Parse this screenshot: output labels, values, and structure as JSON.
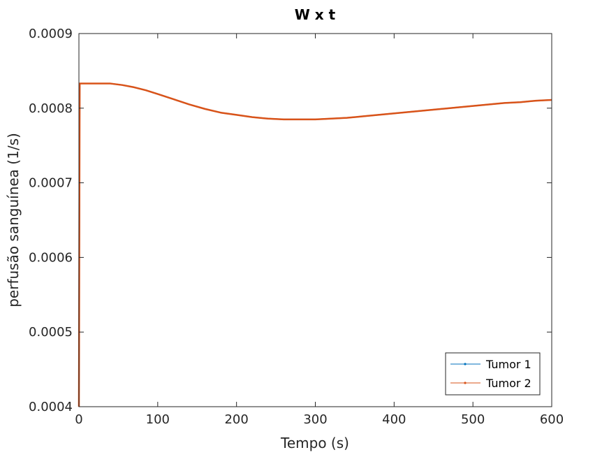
{
  "chart_data": {
    "type": "line",
    "title": "W x t",
    "xlabel": "Tempo (s)",
    "ylabel": "perfusão sanguínea (1/s)",
    "xlim": [
      0,
      600
    ],
    "ylim": [
      0.0004,
      0.0009
    ],
    "x_ticks": [
      0,
      100,
      200,
      300,
      400,
      500,
      600
    ],
    "x_tick_labels": [
      "0",
      "100",
      "200",
      "300",
      "400",
      "500",
      "600"
    ],
    "y_ticks": [
      0.0004,
      0.0005,
      0.0006,
      0.0007,
      0.0008,
      0.0009
    ],
    "y_tick_labels": [
      "0.0004",
      "0.0005",
      "0.0006",
      "0.0007",
      "0.0008",
      "0.0009"
    ],
    "grid": false,
    "legend_position": "bottom-right",
    "series": [
      {
        "name": "Tumor 1",
        "color": "#0072BD",
        "x": [
          0,
          1,
          10,
          25,
          40,
          55,
          70,
          85,
          100,
          120,
          140,
          160,
          180,
          200,
          220,
          240,
          260,
          280,
          300,
          320,
          340,
          360,
          380,
          400,
          420,
          440,
          460,
          480,
          500,
          520,
          540,
          560,
          580,
          600
        ],
        "y": [
          0.0004,
          0.000833,
          0.000833,
          0.000833,
          0.000833,
          0.000831,
          0.000828,
          0.000824,
          0.000819,
          0.000812,
          0.000805,
          0.000799,
          0.000794,
          0.000791,
          0.000788,
          0.000786,
          0.000785,
          0.000785,
          0.000785,
          0.000786,
          0.000787,
          0.000789,
          0.000791,
          0.000793,
          0.000795,
          0.000797,
          0.000799,
          0.000801,
          0.000803,
          0.000805,
          0.000807,
          0.000808,
          0.00081,
          0.000811
        ]
      },
      {
        "name": "Tumor 2",
        "color": "#D95319",
        "x": [
          0,
          1,
          10,
          25,
          40,
          55,
          70,
          85,
          100,
          120,
          140,
          160,
          180,
          200,
          220,
          240,
          260,
          280,
          300,
          320,
          340,
          360,
          380,
          400,
          420,
          440,
          460,
          480,
          500,
          520,
          540,
          560,
          580,
          600
        ],
        "y": [
          0.0004,
          0.000833,
          0.000833,
          0.000833,
          0.000833,
          0.000831,
          0.000828,
          0.000824,
          0.000819,
          0.000812,
          0.000805,
          0.000799,
          0.000794,
          0.000791,
          0.000788,
          0.000786,
          0.000785,
          0.000785,
          0.000785,
          0.000786,
          0.000787,
          0.000789,
          0.000791,
          0.000793,
          0.000795,
          0.000797,
          0.000799,
          0.000801,
          0.000803,
          0.000805,
          0.000807,
          0.000808,
          0.00081,
          0.000811
        ]
      }
    ]
  }
}
